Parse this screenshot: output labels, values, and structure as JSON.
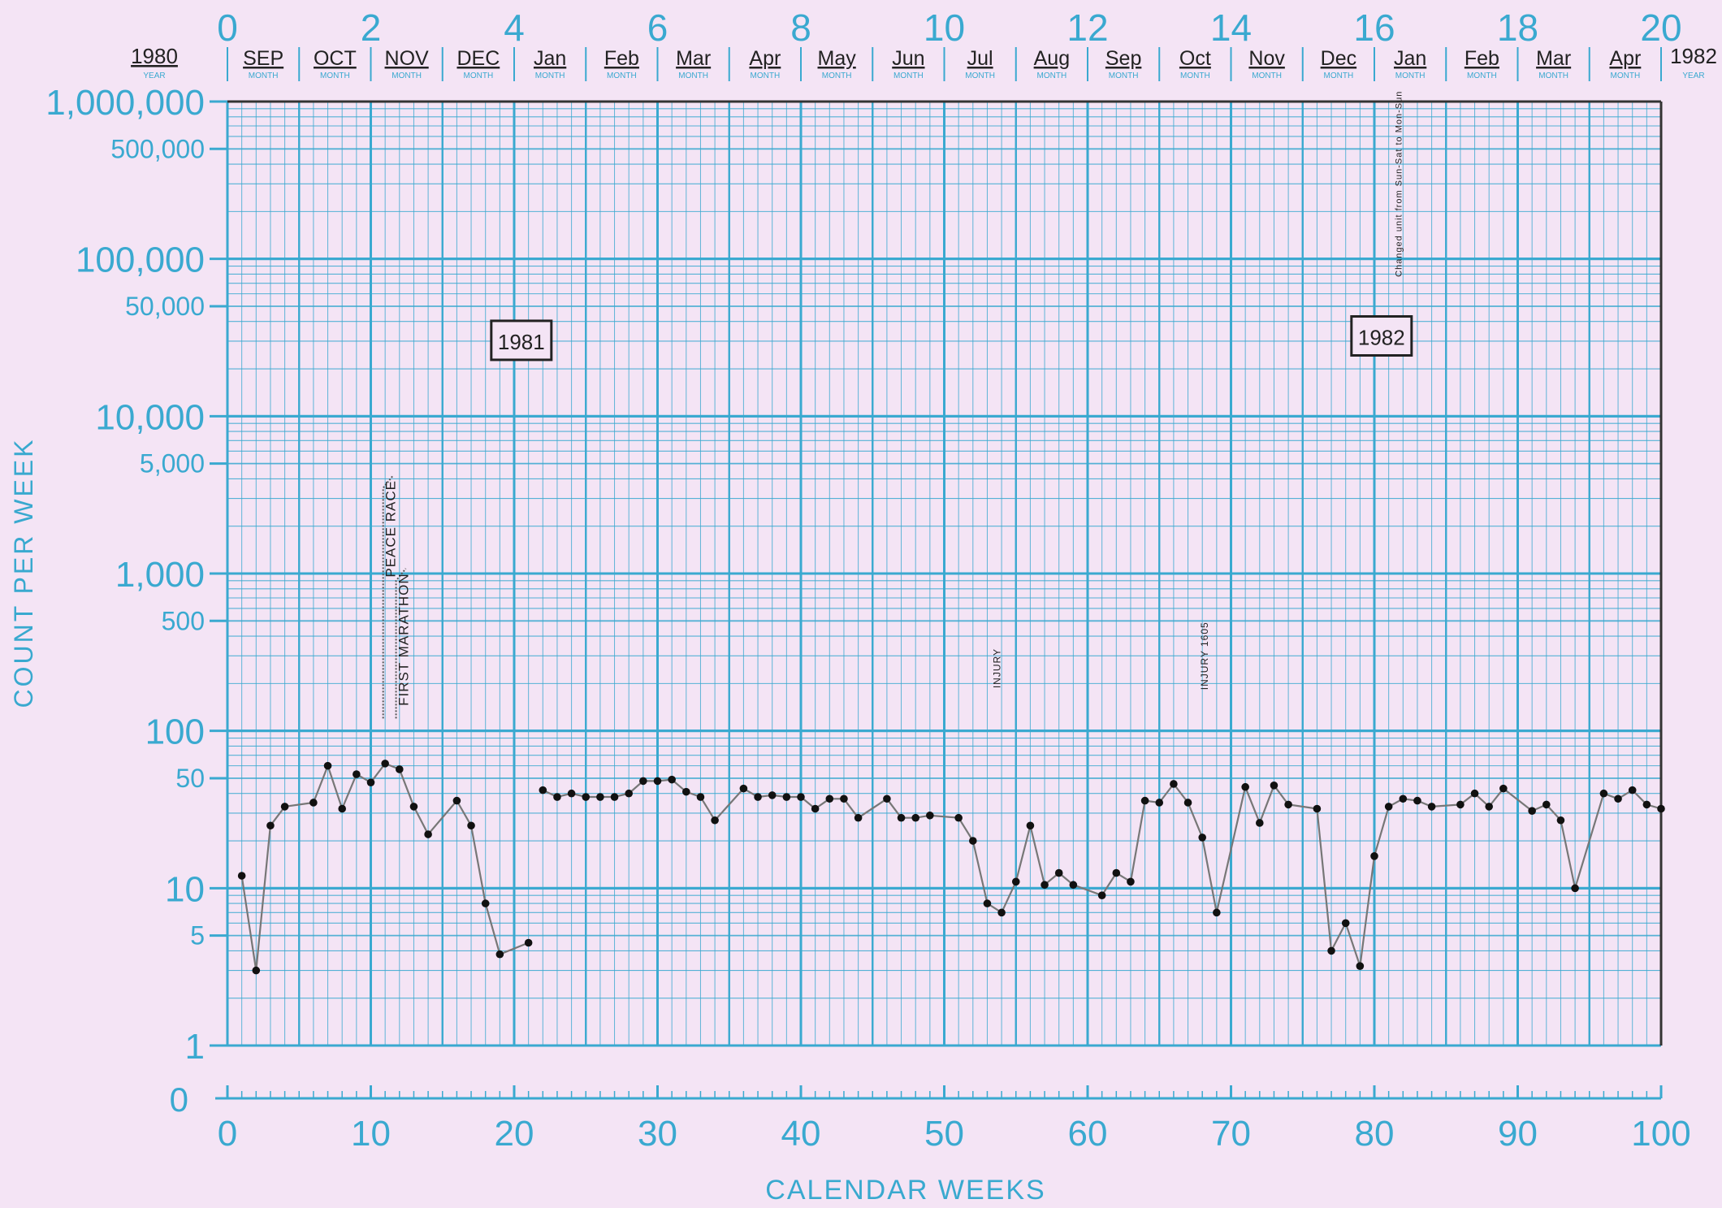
{
  "chart_data": {
    "type": "line",
    "title": "",
    "xlabel": "CALENDAR WEEKS",
    "ylabel": "COUNT PER WEEK",
    "y_scale": "log",
    "ylim": [
      1,
      1000000
    ],
    "xlim": [
      0,
      100
    ],
    "x_ticks": [
      "0",
      "10",
      "20",
      "30",
      "40",
      "50",
      "60",
      "70",
      "80",
      "90",
      "100"
    ],
    "top_ticks": [
      "0",
      "2",
      "4",
      "6",
      "8",
      "10",
      "12",
      "14",
      "16",
      "18",
      "20"
    ],
    "y_ticks": [
      {
        "v": 1000000,
        "label": "1,000,000",
        "major": true
      },
      {
        "v": 500000,
        "label": "500,000",
        "major": false
      },
      {
        "v": 100000,
        "label": "100,000",
        "major": true
      },
      {
        "v": 50000,
        "label": "50,000",
        "major": false
      },
      {
        "v": 10000,
        "label": "10,000",
        "major": true
      },
      {
        "v": 5000,
        "label": "5,000",
        "major": false
      },
      {
        "v": 1000,
        "label": "1,000",
        "major": true
      },
      {
        "v": 500,
        "label": "500",
        "major": false
      },
      {
        "v": 100,
        "label": "100",
        "major": true
      },
      {
        "v": 50,
        "label": "50",
        "major": false
      },
      {
        "v": 10,
        "label": "10",
        "major": true
      },
      {
        "v": 5,
        "label": "5",
        "major": false
      },
      {
        "v": 1,
        "label": "1",
        "major": true
      }
    ],
    "zero_label": "0",
    "month_header": {
      "year_start": "1980",
      "year_end": "1982",
      "year_sublabel": "YEAR",
      "month_sublabel": "MONTH",
      "months": [
        "SEP",
        "OCT",
        "NOV",
        "DEC",
        "Jan",
        "Feb",
        "Mar",
        "Apr",
        "May",
        "Jun",
        "Jul",
        "Aug",
        "Sep",
        "Oct",
        "Nov",
        "Dec",
        "Jan",
        "Feb",
        "Mar",
        "Apr"
      ]
    },
    "year_boxes": [
      {
        "label": "1981",
        "x": 20.5,
        "y": 30000
      },
      {
        "label": "1982",
        "x": 80.5,
        "y": 32000
      }
    ],
    "annotations": [
      {
        "text": "PEACE RACE",
        "x": 11.2,
        "y_from": 120,
        "y_to": 3500
      },
      {
        "text": "FIRST MARATHON",
        "x": 12.1,
        "y_from": 120,
        "y_to": 900
      },
      {
        "text": "INJURY",
        "x": 53.5,
        "y": 250
      },
      {
        "text": "INJURY 1605",
        "x": 68,
        "y": 300
      },
      {
        "text": "Changed unit from Sun-Sat to Mon-Sun",
        "x": 81.5,
        "y": 300000
      }
    ],
    "series": [
      {
        "name": "",
        "segments": [
          [
            [
              1,
              12
            ],
            [
              2,
              3
            ],
            [
              3,
              25
            ],
            [
              4,
              33
            ],
            [
              6,
              35
            ],
            [
              7,
              60
            ],
            [
              8,
              32
            ],
            [
              9,
              53
            ],
            [
              10,
              47
            ],
            [
              11,
              62
            ],
            [
              12,
              57
            ],
            [
              13,
              33
            ],
            [
              14,
              22
            ],
            [
              16,
              36
            ],
            [
              17,
              25
            ],
            [
              18,
              8
            ],
            [
              19,
              3.8
            ],
            [
              21,
              4.5
            ]
          ],
          [
            [
              22,
              42
            ],
            [
              23,
              38
            ],
            [
              24,
              40
            ],
            [
              25,
              38
            ],
            [
              26,
              38
            ],
            [
              27,
              38
            ],
            [
              28,
              40
            ],
            [
              29,
              48
            ],
            [
              30,
              48
            ],
            [
              31,
              49
            ],
            [
              32,
              41
            ],
            [
              33,
              38
            ],
            [
              34,
              27
            ],
            [
              36,
              43
            ],
            [
              37,
              38
            ],
            [
              38,
              39
            ],
            [
              39,
              38
            ],
            [
              40,
              38
            ],
            [
              41,
              32
            ],
            [
              42,
              37
            ],
            [
              43,
              37
            ],
            [
              44,
              28
            ],
            [
              46,
              37
            ],
            [
              47,
              28
            ],
            [
              48,
              28
            ],
            [
              49,
              29
            ],
            [
              51,
              28
            ],
            [
              52,
              20
            ],
            [
              53,
              8
            ],
            [
              54,
              7
            ],
            [
              55,
              11
            ],
            [
              56,
              25
            ],
            [
              57,
              10.5
            ],
            [
              58,
              12.5
            ],
            [
              59,
              10.5
            ],
            [
              61,
              9
            ],
            [
              62,
              12.5
            ],
            [
              63,
              11
            ],
            [
              64,
              36
            ],
            [
              65,
              35
            ],
            [
              66,
              46
            ],
            [
              67,
              35
            ],
            [
              68,
              21
            ],
            [
              69,
              7
            ],
            [
              71,
              44
            ],
            [
              72,
              26
            ],
            [
              73,
              45
            ],
            [
              74,
              34
            ],
            [
              76,
              32
            ],
            [
              77,
              4
            ],
            [
              78,
              6
            ],
            [
              79,
              3.2
            ],
            [
              80,
              16
            ],
            [
              81,
              33
            ],
            [
              82,
              37
            ],
            [
              83,
              36
            ],
            [
              84,
              33
            ],
            [
              86,
              34
            ],
            [
              87,
              40
            ],
            [
              88,
              33
            ],
            [
              89,
              43
            ],
            [
              91,
              31
            ],
            [
              92,
              34
            ],
            [
              93,
              27
            ],
            [
              94,
              10
            ],
            [
              96,
              40
            ],
            [
              97,
              37
            ],
            [
              98,
              42
            ],
            [
              99,
              34
            ],
            [
              100,
              32
            ]
          ]
        ]
      }
    ]
  }
}
